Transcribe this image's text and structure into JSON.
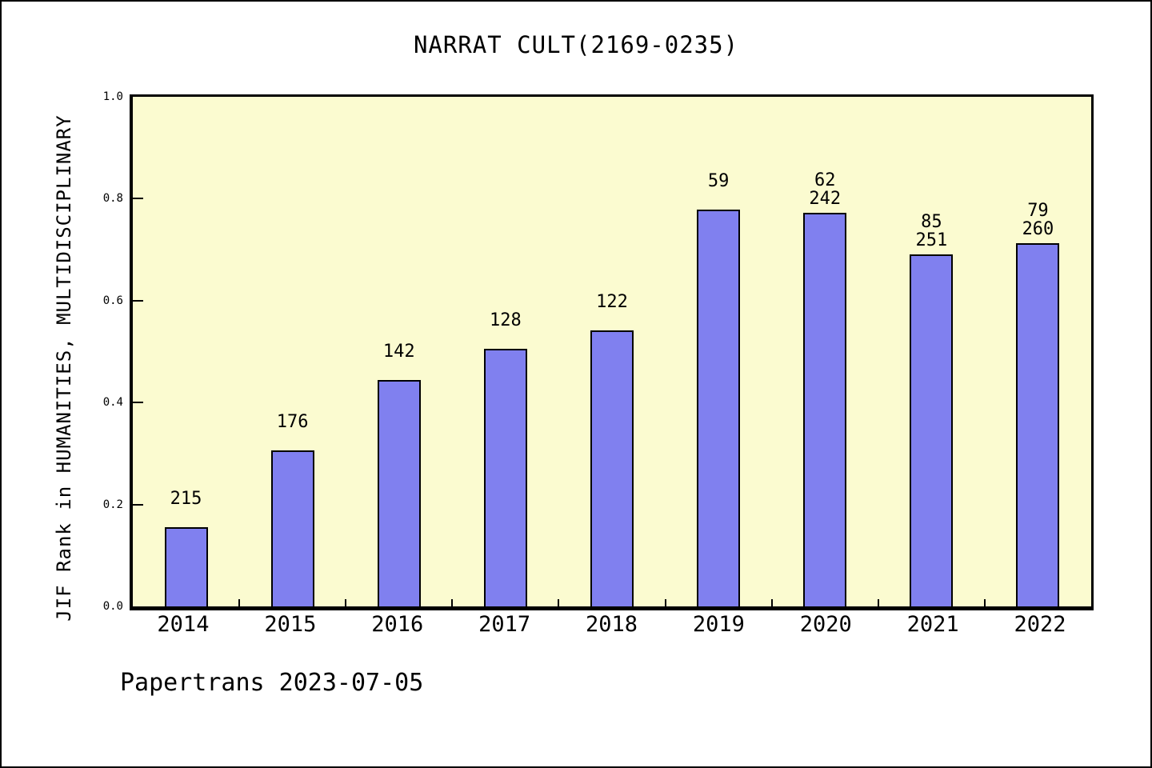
{
  "title": "NARRAT CULT(2169-0235)",
  "footer": "Papertrans 2023-07-05",
  "chart_data": {
    "type": "bar",
    "title": "NARRAT CULT(2169-0235)",
    "xlabel": "",
    "ylabel": "JIF Rank in HUMANITIES, MULTIDISCIPLINARY",
    "categories": [
      "2014",
      "2015",
      "2016",
      "2017",
      "2018",
      "2019",
      "2020",
      "2021",
      "2022"
    ],
    "values": [
      0.155,
      0.306,
      0.444,
      0.506,
      0.541,
      0.778,
      0.772,
      0.691,
      0.713
    ],
    "bar_labels": [
      [
        "215"
      ],
      [
        "176"
      ],
      [
        "142"
      ],
      [
        "128"
      ],
      [
        "122"
      ],
      [
        "59"
      ],
      [
        "62",
        "242"
      ],
      [
        "85",
        "251"
      ],
      [
        "79",
        "260"
      ]
    ],
    "ylim": [
      0,
      1
    ],
    "yticks": [
      0.0,
      0.2,
      0.4,
      0.6,
      0.8,
      1.0
    ],
    "ytick_labels": [
      "0.0",
      "0.2",
      "0.4",
      "0.6",
      "0.8",
      "1.0"
    ],
    "grid": false,
    "legend": null,
    "colors": {
      "bar_fill": "#8080EF",
      "bar_edge": "#000000",
      "plot_bg": "#FBFBD0",
      "page_bg": "#FFFFFF",
      "text": "#000000"
    }
  }
}
